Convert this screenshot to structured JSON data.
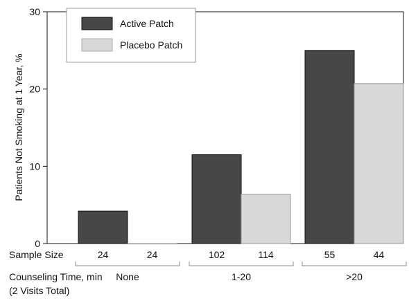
{
  "chart_data": {
    "type": "bar",
    "ylabel": "Patients Not Smoking at 1 Year, %",
    "ylim": [
      0,
      30
    ],
    "yticks": [
      0,
      10,
      20,
      30
    ],
    "series": [
      {
        "name": "Active Patch",
        "color": "#474747",
        "values": [
          4.2,
          11.5,
          25.0
        ],
        "sample_sizes": [
          "24",
          "102",
          "55"
        ]
      },
      {
        "name": "Placebo Patch",
        "color": "#d8d8d8",
        "values": [
          0,
          6.4,
          20.7
        ],
        "sample_sizes": [
          "24",
          "114",
          "44"
        ]
      }
    ],
    "categories": [
      "None",
      "1-20",
      ">20"
    ],
    "sample_size_label": "Sample Size",
    "counseling_label_line1": "Counseling Time, min",
    "counseling_label_line2": "(2 Visits Total)",
    "legend_position": "top-left"
  }
}
